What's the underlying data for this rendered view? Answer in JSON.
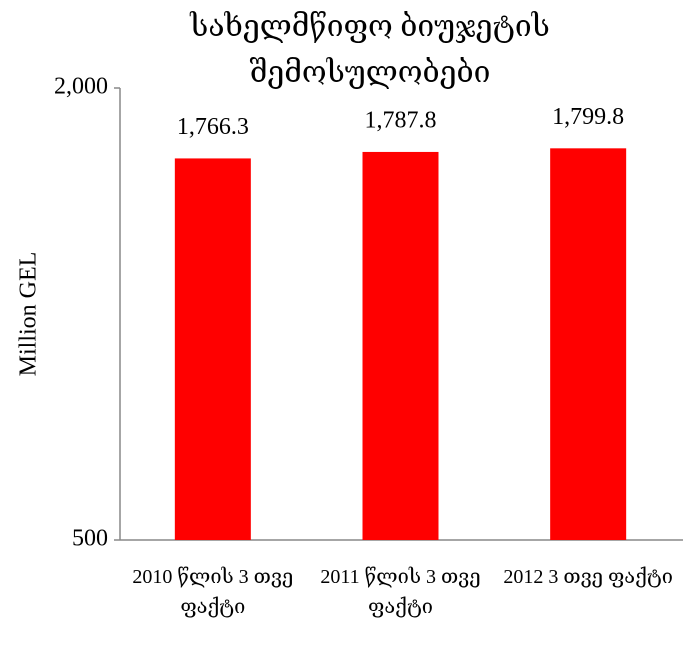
{
  "chart_data": {
    "type": "bar",
    "title": "სახელმწიფო ბიუჯეტის შემოსულობები",
    "y_label": "Million GEL",
    "categories": [
      "2010 წლის 3 თვე ფაქტი",
      "2011 წლის 3 თვე ფაქტი",
      "2012 3 თვე ფაქტი"
    ],
    "values": [
      1766.3,
      1787.8,
      1799.8
    ],
    "value_labels": [
      "1,766.3",
      "1,787.8",
      "1,799.8"
    ],
    "color": "#ff0000",
    "ylim": [
      500,
      2000
    ],
    "yticks": [
      500,
      {
        "value": 2000,
        "label": "2,000"
      }
    ]
  }
}
